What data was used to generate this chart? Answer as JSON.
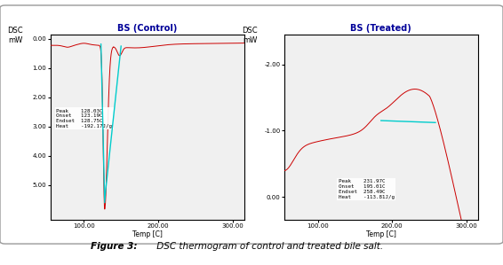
{
  "left_title": "BS (Control)",
  "right_title": "BS (Treated)",
  "xlabel": "Temp [C]",
  "ylabel": "DSC\nmW",
  "left_xlim": [
    55,
    315
  ],
  "left_ylim": [
    6.2,
    -0.15
  ],
  "right_xlim": [
    55,
    315
  ],
  "right_ylim": [
    0.35,
    -2.45
  ],
  "left_xticks": [
    100.0,
    200.0,
    300.0
  ],
  "right_xticks": [
    100.0,
    200.0,
    300.0
  ],
  "left_yticks": [
    0.0,
    1.0,
    2.0,
    3.0,
    4.0,
    5.0
  ],
  "right_yticks": [
    0.0,
    -1.0,
    -2.0
  ],
  "left_ytick_labels": [
    "0.00",
    "1.00",
    "2.00",
    "3.00",
    "4.00",
    "5.00"
  ],
  "right_ytick_labels": [
    "0.00",
    "-1.00",
    "-2.00"
  ],
  "xtick_labels": [
    "100.00",
    "200.00",
    "300.00"
  ],
  "left_ann": [
    "Peak",
    "128.03C",
    "Onset",
    "123.19C",
    "Endset",
    "128.75C",
    "Heat",
    "-192.17J/g"
  ],
  "right_ann": [
    "Peak",
    "231.97C",
    "Onset",
    "195.01C",
    "Endset",
    "258.49C",
    "Heat",
    "-113.81J/g"
  ],
  "line_color": "#cc0000",
  "cyan_color": "#00cccc",
  "bg_color": "#f0f0f0",
  "title_color": "#000099",
  "caption_bold": "Figure 3:",
  "caption_rest": " DSC thermogram of control and treated bile salt."
}
